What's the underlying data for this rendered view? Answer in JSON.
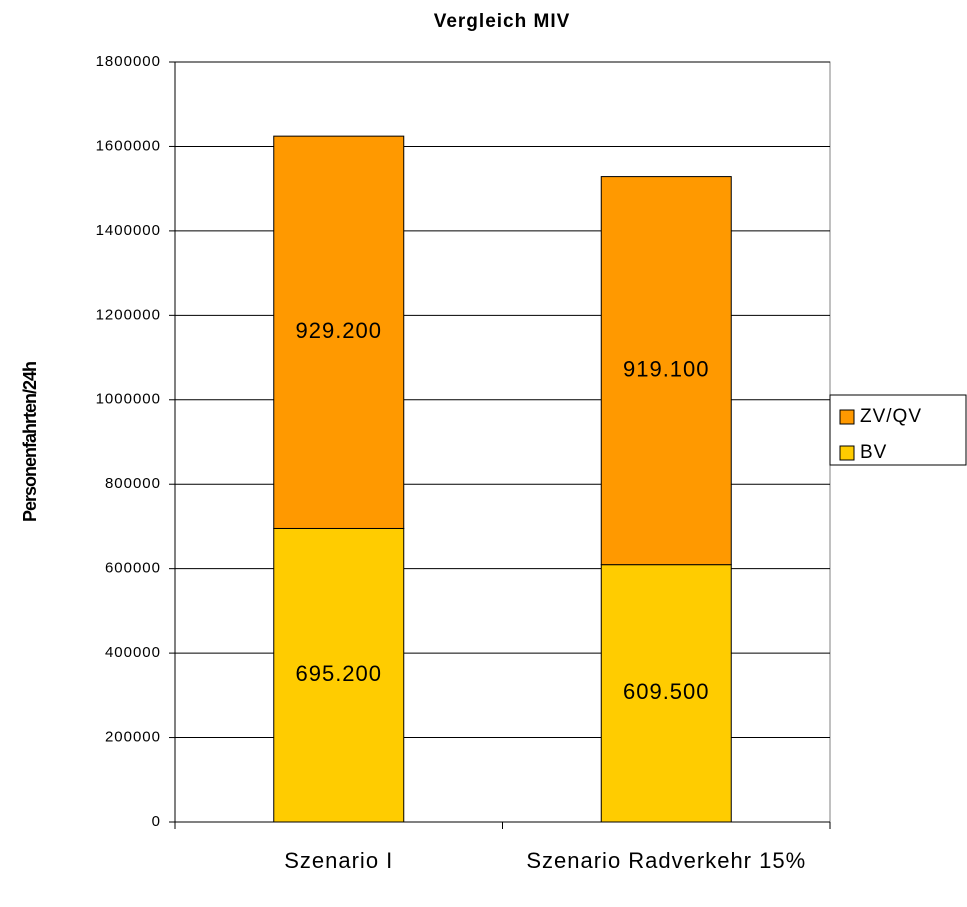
{
  "chart_data": {
    "type": "stacked_bar",
    "title": "Vergleich MIV",
    "ylabel": "Personenfahrten/24h",
    "categories": [
      "Szenario I",
      "Szenario Radverkehr 15%"
    ],
    "series": [
      {
        "name": "BV",
        "color": "#ffcc00",
        "values": [
          695200,
          609500
        ],
        "value_labels": [
          "695.200",
          "609.500"
        ]
      },
      {
        "name": "ZV/QV",
        "color": "#ff9900",
        "values": [
          929200,
          919100
        ],
        "value_labels": [
          "929.200",
          "919.100"
        ]
      }
    ],
    "ylim": [
      0,
      1800000
    ],
    "yticks": [
      0,
      200000,
      400000,
      600000,
      800000,
      1000000,
      1200000,
      1400000,
      1600000,
      1800000
    ],
    "grid": true,
    "legend": "right"
  }
}
